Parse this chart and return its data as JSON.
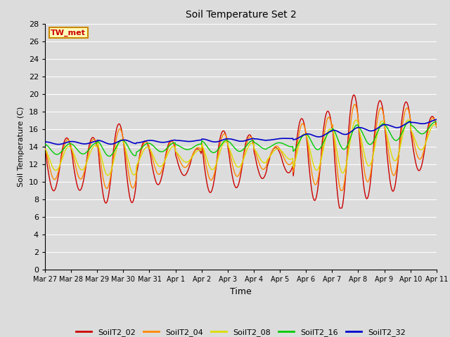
{
  "title": "Soil Temperature Set 2",
  "xlabel": "Time",
  "ylabel": "Soil Temperature (C)",
  "annotation": "TW_met",
  "ylim": [
    0,
    28
  ],
  "yticks": [
    0,
    2,
    4,
    6,
    8,
    10,
    12,
    14,
    16,
    18,
    20,
    22,
    24,
    26,
    28
  ],
  "colors": {
    "SoilT2_02": "#cc0000",
    "SoilT2_04": "#ff8800",
    "SoilT2_08": "#dddd00",
    "SoilT2_16": "#00cc00",
    "SoilT2_32": "#0000cc"
  },
  "legend_labels": [
    "SoilT2_02",
    "SoilT2_04",
    "SoilT2_08",
    "SoilT2_16",
    "SoilT2_32"
  ],
  "xtick_labels": [
    "Mar 27",
    "Mar 28",
    "Mar 29",
    "Mar 30",
    "Mar 31",
    "Apr 1",
    "Apr 2",
    "Apr 3",
    "Apr 4",
    "Apr 5",
    "Apr 6",
    "Apr 7",
    "Apr 8",
    "Apr 9",
    "Apr 10",
    "Apr 11"
  ],
  "n_days": 15,
  "background_color": "#dcdcdc",
  "plot_bg_color": "#dcdcdc",
  "grid_color": "#ffffff",
  "figsize": [
    6.4,
    4.8
  ],
  "dpi": 100
}
